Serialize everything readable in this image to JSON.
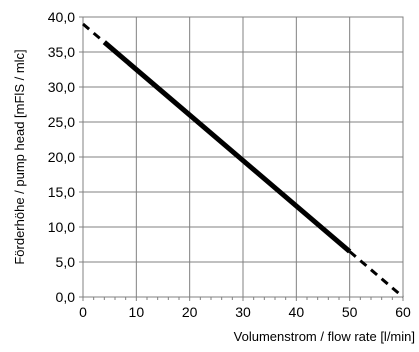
{
  "chart_data": {
    "type": "line",
    "xlabel": "Volumenstrom / flow rate [l/min]",
    "ylabel": "Förderhöhe / pump head [mFlS / mlc]",
    "xlim": [
      0,
      60
    ],
    "ylim": [
      0,
      40
    ],
    "x_ticks": [
      0,
      10,
      20,
      30,
      40,
      50,
      60
    ],
    "y_ticks": [
      0,
      5,
      10,
      15,
      20,
      25,
      30,
      35,
      40
    ],
    "x_tick_labels": [
      "0",
      "10",
      "20",
      "30",
      "40",
      "50",
      "60"
    ],
    "y_tick_labels": [
      "0,0",
      "5,0",
      "10,0",
      "15,0",
      "20,0",
      "25,0",
      "30,0",
      "35,0",
      "40,0"
    ],
    "grid": true,
    "series": [
      {
        "style": "dashed",
        "x": [
          0,
          4
        ],
        "y": [
          39.0,
          36.4
        ]
      },
      {
        "style": "solid",
        "x": [
          4,
          50
        ],
        "y": [
          36.4,
          6.5
        ]
      },
      {
        "style": "dashed",
        "x": [
          50,
          60
        ],
        "y": [
          6.5,
          0.0
        ]
      }
    ]
  }
}
